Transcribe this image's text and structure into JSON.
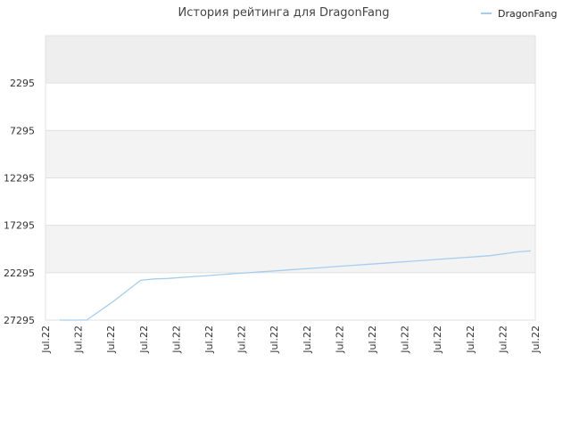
{
  "chart_data": {
    "type": "line",
    "title": "История рейтинга для DragonFang",
    "xlabel": "",
    "ylabel": "",
    "y_axis_inverted": true,
    "ylim": [
      27295,
      -2705
    ],
    "y_ticks": [
      2295,
      7295,
      12295,
      17295,
      22295,
      27295
    ],
    "x_tick_labels": [
      "Jul.22",
      "Jul.22",
      "Jul.22",
      "Jul.22",
      "Jul.22",
      "Jul.22",
      "Jul.22",
      "Jul.22",
      "Jul.22",
      "Jul.22",
      "Jul.22",
      "Jul.22",
      "Jul.22",
      "Jul.22",
      "Jul.22",
      "Jul.22"
    ],
    "grid": true,
    "legend_position": "top-right",
    "series": [
      {
        "name": "DragonFang",
        "color": "#a6cdee",
        "values": [
          27295,
          27295,
          27290,
          26300,
          25300,
          24200,
          23100,
          22950,
          22900,
          22800,
          22700,
          22600,
          22500,
          22400,
          22300,
          22200,
          22100,
          22000,
          21900,
          21800,
          21700,
          21600,
          21500,
          21400,
          21300,
          21200,
          21100,
          21000,
          20900,
          20800,
          20700,
          20600,
          20500,
          20300,
          20100,
          20000
        ]
      }
    ]
  }
}
